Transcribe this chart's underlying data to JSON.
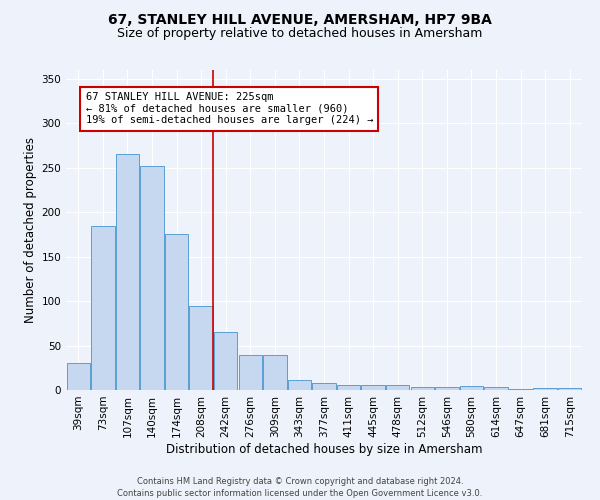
{
  "title": "67, STANLEY HILL AVENUE, AMERSHAM, HP7 9BA",
  "subtitle": "Size of property relative to detached houses in Amersham",
  "xlabel": "Distribution of detached houses by size in Amersham",
  "ylabel": "Number of detached properties",
  "categories": [
    "39sqm",
    "73sqm",
    "107sqm",
    "140sqm",
    "174sqm",
    "208sqm",
    "242sqm",
    "276sqm",
    "309sqm",
    "343sqm",
    "377sqm",
    "411sqm",
    "445sqm",
    "478sqm",
    "512sqm",
    "546sqm",
    "580sqm",
    "614sqm",
    "647sqm",
    "681sqm",
    "715sqm"
  ],
  "values": [
    30,
    185,
    265,
    252,
    176,
    95,
    65,
    39,
    39,
    11,
    8,
    6,
    6,
    6,
    3,
    3,
    4,
    3,
    1,
    2,
    2
  ],
  "bar_color": "#c5d8f0",
  "bar_edge_color": "#5a9fd4",
  "ylim": [
    0,
    360
  ],
  "yticks": [
    0,
    50,
    100,
    150,
    200,
    250,
    300,
    350
  ],
  "annotation_line1": "67 STANLEY HILL AVENUE: 225sqm",
  "annotation_line2": "← 81% of detached houses are smaller (960)",
  "annotation_line3": "19% of semi-detached houses are larger (224) →",
  "vline_x": 5.47,
  "vline_color": "#cc0000",
  "annotation_box_color": "#ffffff",
  "annotation_box_edge": "#cc0000",
  "footer1": "Contains HM Land Registry data © Crown copyright and database right 2024.",
  "footer2": "Contains public sector information licensed under the Open Government Licence v3.0.",
  "background_color": "#eef2fa",
  "grid_color": "#ffffff",
  "title_fontsize": 10,
  "subtitle_fontsize": 9,
  "xlabel_fontsize": 8.5,
  "ylabel_fontsize": 8.5,
  "tick_fontsize": 7.5,
  "annotation_fontsize": 7.5,
  "footer_fontsize": 6
}
